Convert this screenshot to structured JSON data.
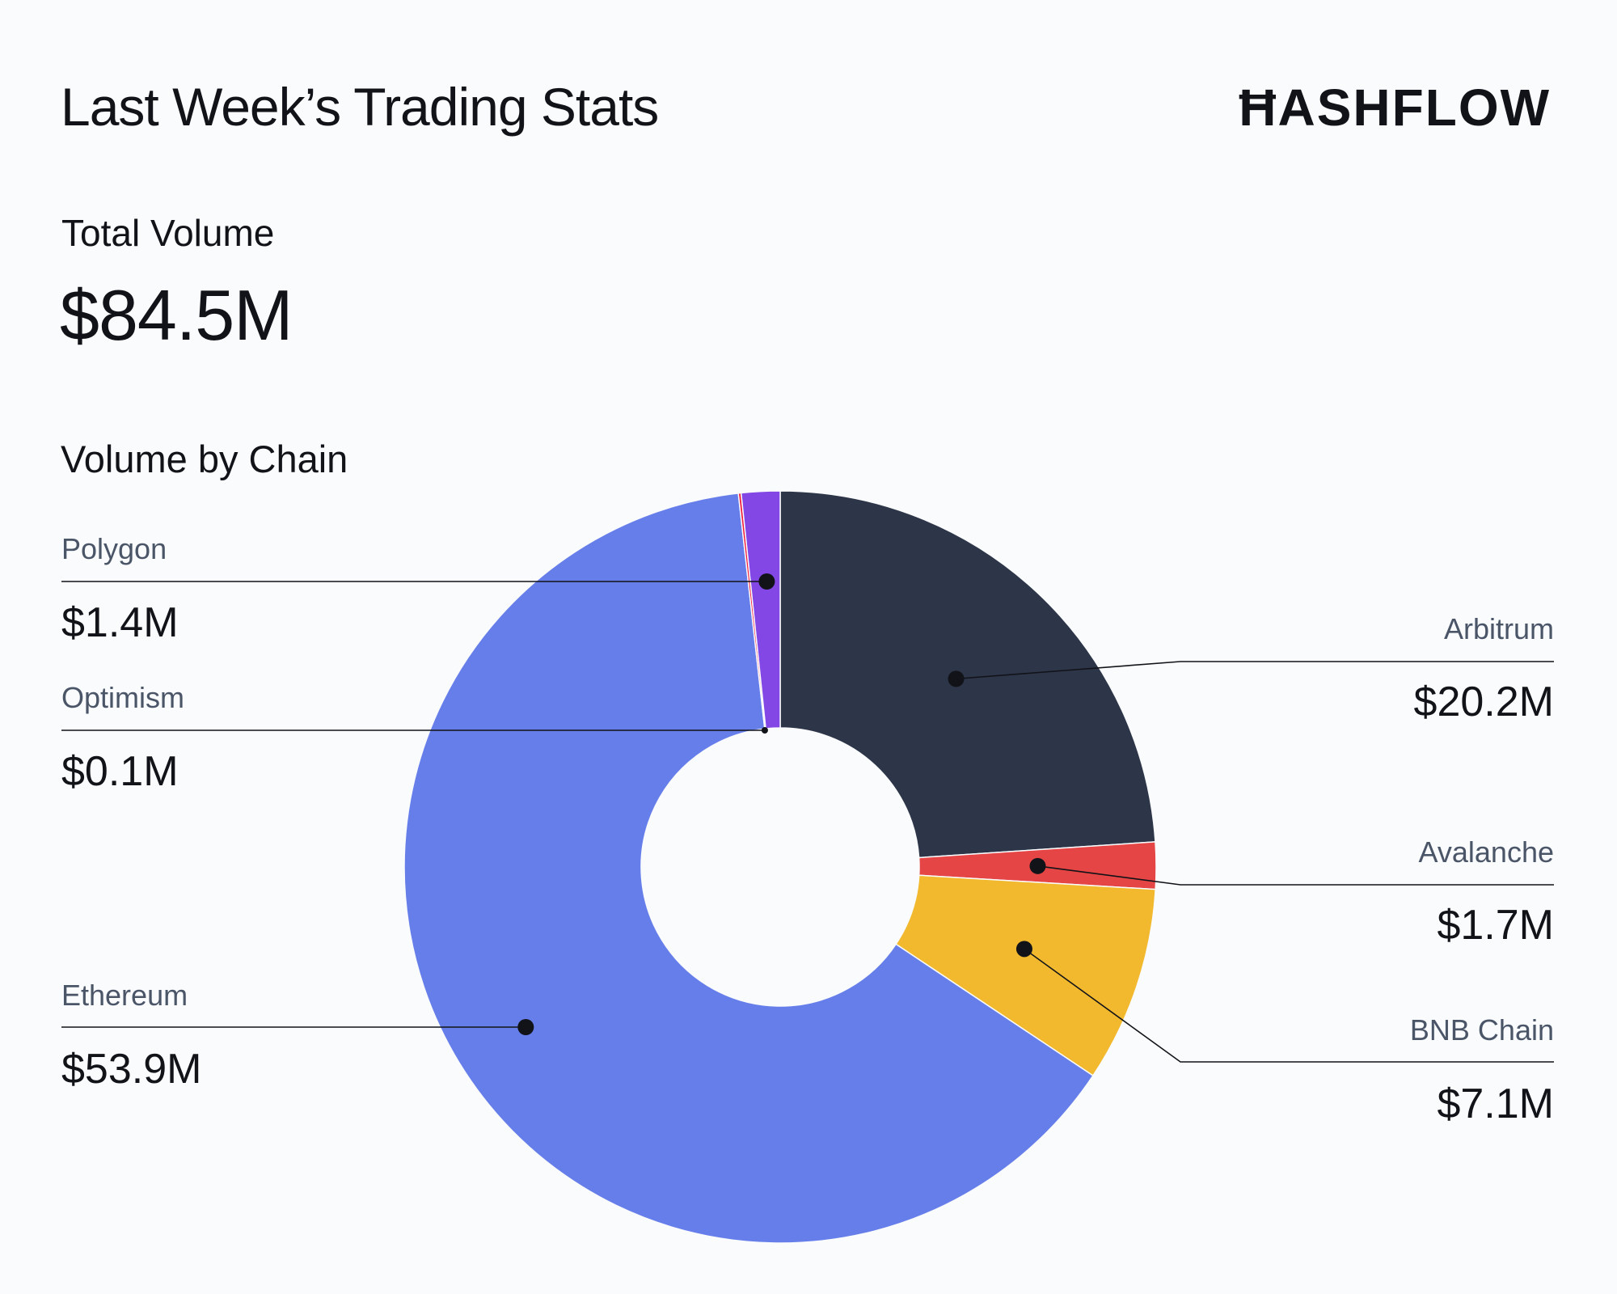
{
  "header": {
    "title": "Last Week’s Trading Stats",
    "brand": "ĦASHFLOW"
  },
  "summary": {
    "total_label": "Total Volume",
    "total_value": "$84.5M"
  },
  "section": {
    "title": "Volume by Chain"
  },
  "chart_data": {
    "type": "pie",
    "style": "donut",
    "title": "Volume by Chain",
    "unit": "$M",
    "total": 84.5,
    "slices": [
      {
        "name": "Arbitrum",
        "value": 20.2,
        "label": "$20.2M",
        "color": "#2d3548",
        "side": "right"
      },
      {
        "name": "Avalanche",
        "value": 1.7,
        "label": "$1.7M",
        "color": "#e54545",
        "side": "right"
      },
      {
        "name": "BNB Chain",
        "value": 7.1,
        "label": "$7.1M",
        "color": "#f2b92f",
        "side": "right"
      },
      {
        "name": "Ethereum",
        "value": 53.9,
        "label": "$53.9M",
        "color": "#667eea",
        "side": "left"
      },
      {
        "name": "Optimism",
        "value": 0.1,
        "label": "$0.1M",
        "color": "#f21d3d",
        "side": "left"
      },
      {
        "name": "Polygon",
        "value": 1.4,
        "label": "$1.4M",
        "color": "#8247e5",
        "side": "left"
      }
    ]
  }
}
